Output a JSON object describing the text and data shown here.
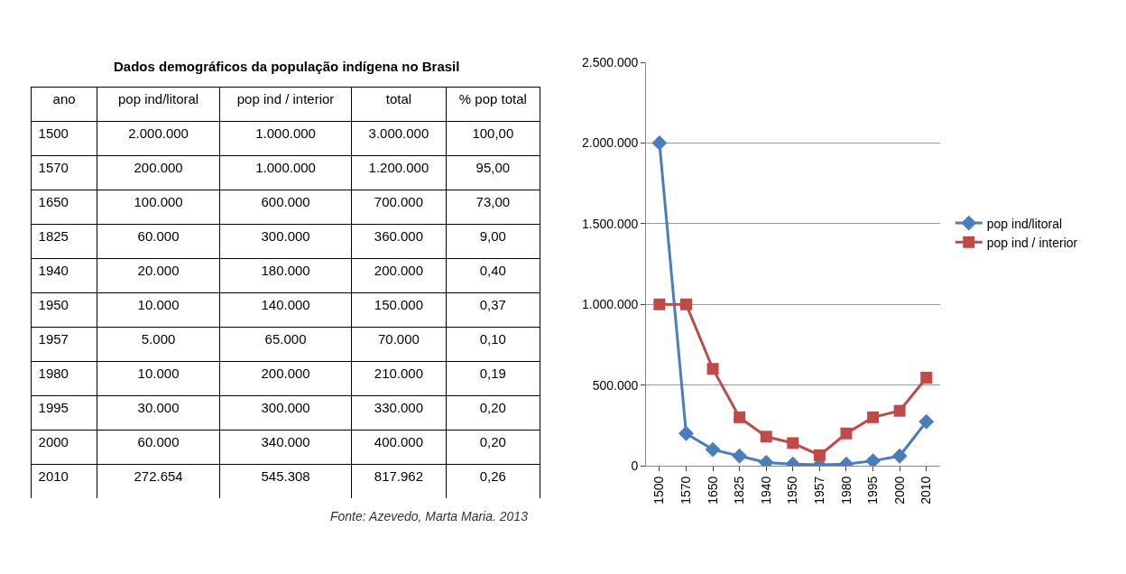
{
  "chart_data": [
    {
      "type": "other",
      "title": "Dados demográficos da população indígena no Brasil",
      "xlabel": "ano",
      "categories": [
        "1500",
        "1570",
        "1650",
        "1825",
        "1940",
        "1950",
        "1957",
        "1980",
        "1995",
        "2000",
        "2010"
      ],
      "series": [
        {
          "name": "pop ind/litoral",
          "values": [
            2000000,
            200000,
            100000,
            60000,
            20000,
            10000,
            5000,
            10000,
            30000,
            60000,
            272654
          ],
          "value_labels": [
            "2.000.000",
            "200.000",
            "100.000",
            "60.000",
            "20.000",
            "10.000",
            "5.000",
            "10.000",
            "30.000",
            "60.000",
            "272.654"
          ]
        },
        {
          "name": "pop ind / interior",
          "values": [
            1000000,
            1000000,
            600000,
            300000,
            180000,
            140000,
            65000,
            200000,
            300000,
            340000,
            545308
          ],
          "value_labels": [
            "1.000.000",
            "1.000.000",
            "600.000",
            "300.000",
            "180.000",
            "140.000",
            "65.000",
            "200.000",
            "300.000",
            "340.000",
            "545.308"
          ]
        },
        {
          "name": "total",
          "values": [
            3000000,
            1200000,
            700000,
            360000,
            200000,
            150000,
            70000,
            210000,
            330000,
            400000,
            817962
          ],
          "value_labels": [
            "3.000.000",
            "1.200.000",
            "700.000",
            "360.000",
            "200.000",
            "150.000",
            "70.000",
            "210.000",
            "330.000",
            "400.000",
            "817.962"
          ]
        },
        {
          "name": "% pop total",
          "values": [
            100,
            95,
            73,
            9,
            0.4,
            0.37,
            0.1,
            0.19,
            0.2,
            0.2,
            0.26
          ],
          "value_labels": [
            "100,00",
            "95,00",
            "73,00",
            "9,00",
            "0,40",
            "0,37",
            "0,10",
            "0,19",
            "0,20",
            "0,20",
            "0,26"
          ]
        }
      ],
      "annotations": [
        "Fonte: Azevedo, Marta Maria. 2013"
      ]
    },
    {
      "type": "line",
      "categories": [
        "1500",
        "1570",
        "1650",
        "1825",
        "1940",
        "1950",
        "1957",
        "1980",
        "1995",
        "2000",
        "2010"
      ],
      "series": [
        {
          "name": "pop ind/litoral",
          "color": "#4a7ebb",
          "marker": "diamond",
          "values": [
            2000000,
            200000,
            100000,
            60000,
            20000,
            10000,
            5000,
            10000,
            30000,
            60000,
            272654
          ]
        },
        {
          "name": "pop ind / interior",
          "color": "#be4b48",
          "marker": "square",
          "values": [
            1000000,
            1000000,
            600000,
            300000,
            180000,
            140000,
            65000,
            200000,
            300000,
            340000,
            545308
          ]
        }
      ],
      "ylim": [
        0,
        2500000
      ],
      "yticks": [
        0,
        {
          "value": 500000,
          "label": "500.000"
        },
        {
          "value": 1000000,
          "label": "1.000.000"
        },
        {
          "value": 1500000,
          "label": "1.500.000"
        },
        {
          "value": 2000000,
          "label": "2.000.000"
        },
        {
          "value": 2500000,
          "label": "2.500.000"
        }
      ],
      "grid": "y",
      "legend": "right",
      "line_style": "solid"
    }
  ]
}
